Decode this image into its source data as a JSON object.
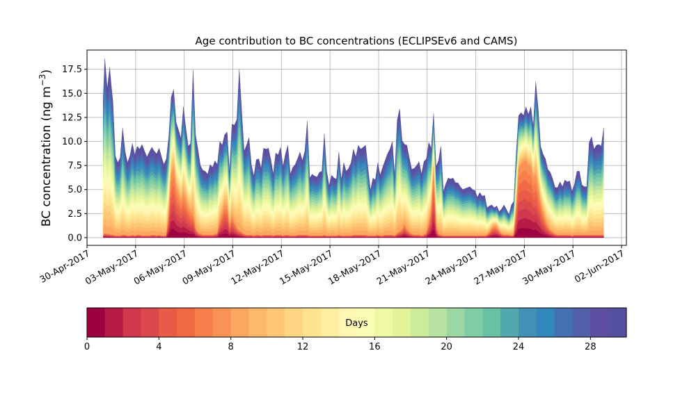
{
  "chart_data": {
    "type": "area",
    "stacked": true,
    "title": "Age contribution to BC concentrations (ECLIPSEv6 and CAMS)",
    "ylabel": "BC concentration (ng m",
    "ylabel_sup": "−3",
    "ylabel_close": ")",
    "xlabel": "",
    "grid": true,
    "xlim_days": [
      0,
      33.3
    ],
    "ylim": [
      -0.8,
      19.5
    ],
    "yticks": [
      0.0,
      2.5,
      5.0,
      7.5,
      10.0,
      12.5,
      15.0,
      17.5
    ],
    "ytick_labels": [
      "0.0",
      "2.5",
      "5.0",
      "7.5",
      "10.0",
      "12.5",
      "15.0",
      "17.5"
    ],
    "xticks": [
      {
        "day": 0,
        "label": "30-Apr-2017"
      },
      {
        "day": 3,
        "label": "03-May-2017"
      },
      {
        "day": 6,
        "label": "06-May-2017"
      },
      {
        "day": 9,
        "label": "09-May-2017"
      },
      {
        "day": 12,
        "label": "12-May-2017"
      },
      {
        "day": 15,
        "label": "15-May-2017"
      },
      {
        "day": 18,
        "label": "18-May-2017"
      },
      {
        "day": 21,
        "label": "21-May-2017"
      },
      {
        "day": 24,
        "label": "24-May-2017"
      },
      {
        "day": 27,
        "label": "27-May-2017"
      },
      {
        "day": 30,
        "label": "30-May-2017"
      },
      {
        "day": 33,
        "label": "02-Jun-2017"
      }
    ],
    "series_note": "30 stacked age bands (0-30 days); total concentration shown, young-age (<8 days) fraction shown",
    "x_days": [
      1.0,
      1.1,
      1.25,
      1.4,
      1.5,
      1.6,
      1.75,
      1.9,
      2.05,
      2.2,
      2.35,
      2.5,
      2.65,
      2.8,
      2.95,
      3.1,
      3.25,
      3.4,
      3.55,
      3.7,
      3.85,
      4.0,
      4.15,
      4.3,
      4.45,
      4.6,
      4.75,
      4.9,
      5.05,
      5.2,
      5.35,
      5.5,
      5.65,
      5.8,
      5.95,
      6.1,
      6.25,
      6.4,
      6.55,
      6.7,
      6.85,
      7.0,
      7.15,
      7.3,
      7.45,
      7.6,
      7.75,
      7.9,
      8.05,
      8.2,
      8.35,
      8.5,
      8.65,
      8.8,
      8.95,
      9.1,
      9.25,
      9.4,
      9.55,
      9.7,
      9.85,
      10.0,
      10.15,
      10.3,
      10.45,
      10.6,
      10.75,
      10.9,
      11.05,
      11.2,
      11.35,
      11.5,
      11.65,
      11.8,
      11.95,
      12.1,
      12.25,
      12.4,
      12.55,
      12.7,
      12.85,
      13.0,
      13.15,
      13.3,
      13.45,
      13.6,
      13.75,
      13.9,
      14.05,
      14.2,
      14.35,
      14.5,
      14.65,
      14.8,
      14.95,
      15.1,
      15.25,
      15.4,
      15.55,
      15.7,
      15.85,
      16.0,
      16.15,
      16.3,
      16.45,
      16.6,
      16.75,
      16.9,
      17.05,
      17.2,
      17.35,
      17.5,
      17.65,
      17.8,
      17.95,
      18.1,
      18.25,
      18.4,
      18.55,
      18.7,
      18.85,
      19.0,
      19.15,
      19.3,
      19.45,
      19.6,
      19.75,
      19.9,
      20.05,
      20.2,
      20.35,
      20.5,
      20.65,
      20.8,
      20.95,
      21.1,
      21.25,
      21.4,
      21.55,
      21.7,
      21.85,
      22.0,
      22.15,
      22.3,
      22.45,
      22.6,
      22.75,
      22.9,
      23.05,
      23.2,
      23.35,
      23.5,
      23.65,
      23.8,
      23.95,
      24.1,
      24.25,
      24.4,
      24.55,
      24.7,
      24.85,
      25.0,
      25.15,
      25.3,
      25.45,
      25.6,
      25.75,
      25.9,
      26.05,
      26.2,
      26.35,
      26.5,
      26.65,
      26.8,
      26.95,
      27.1,
      27.25,
      27.4,
      27.55,
      27.7,
      27.85,
      28.0,
      28.15,
      28.3,
      28.45,
      28.6,
      28.75,
      28.9,
      29.05,
      29.2,
      29.35,
      29.5,
      29.65,
      29.8,
      29.95,
      30.1,
      30.25,
      30.4,
      30.55,
      30.7,
      30.85,
      31.0,
      31.15,
      31.3,
      31.45,
      31.6,
      31.75,
      31.9
    ],
    "total": [
      14.5,
      18.6,
      15.5,
      17.7,
      15.8,
      14.2,
      8.5,
      7.8,
      8.3,
      11.4,
      9.0,
      7.8,
      8.5,
      9.8,
      8.6,
      9.5,
      9.2,
      9.7,
      9.0,
      8.4,
      8.9,
      9.4,
      9.0,
      8.7,
      9.3,
      8.4,
      7.6,
      8.2,
      10.5,
      14.6,
      15.4,
      12.0,
      11.2,
      10.3,
      13.6,
      11.4,
      9.5,
      9.8,
      17.4,
      10.7,
      9.2,
      7.5,
      7.0,
      6.9,
      6.6,
      7.6,
      7.3,
      8.0,
      7.6,
      10.0,
      9.6,
      10.7,
      11.0,
      6.8,
      11.8,
      11.7,
      12.3,
      17.5,
      13.1,
      9.0,
      9.6,
      10.4,
      7.6,
      6.4,
      8.1,
      8.2,
      7.2,
      9.3,
      9.2,
      9.3,
      8.1,
      6.6,
      8.8,
      8.6,
      9.4,
      7.4,
      8.7,
      9.6,
      6.6,
      7.3,
      7.6,
      8.2,
      8.9,
      8.0,
      9.0,
      12.1,
      6.2,
      6.6,
      6.4,
      6.3,
      6.8,
      6.9,
      10.8,
      6.9,
      5.4,
      6.5,
      6.2,
      6.1,
      8.9,
      6.0,
      7.8,
      6.9,
      7.2,
      7.8,
      9.2,
      8.4,
      9.6,
      9.2,
      9.4,
      9.6,
      7.2,
      4.9,
      6.2,
      6.0,
      7.8,
      6.5,
      7.3,
      8.0,
      8.7,
      9.2,
      10.0,
      6.4,
      12.2,
      13.4,
      10.1,
      9.7,
      9.6,
      8.3,
      7.1,
      7.2,
      7.5,
      7.9,
      6.6,
      7.9,
      8.2,
      9.9,
      9.3,
      12.9,
      7.4,
      8.0,
      9.5,
      4.8,
      5.6,
      6.2,
      6.1,
      6.2,
      5.7,
      5.7,
      5.3,
      5.0,
      5.1,
      5.2,
      5.3,
      5.0,
      4.9,
      4.2,
      4.7,
      4.3,
      4.4,
      3.1,
      3.3,
      3.4,
      3.1,
      3.3,
      2.7,
      3.0,
      3.4,
      2.9,
      2.4,
      3.4,
      3.8,
      8.8,
      12.7,
      13.0,
      12.7,
      13.6,
      12.8,
      13.6,
      11.6,
      16.2,
      13.5,
      9.5,
      8.7,
      8.2,
      7.1,
      6.8,
      6.1,
      5.2,
      5.2,
      5.8,
      5.3,
      6.0,
      5.8,
      5.9,
      4.8,
      5.6,
      6.9,
      6.9,
      5.5,
      5.3,
      5.3,
      9.9,
      10.5,
      9.2,
      9.6,
      9.7,
      9.5,
      11.4
    ],
    "young": [
      0.3,
      0.5,
      0.4,
      0.4,
      0.3,
      0.3,
      0.2,
      0.2,
      0.2,
      0.3,
      0.3,
      0.2,
      0.2,
      0.3,
      0.2,
      0.3,
      0.3,
      0.2,
      0.2,
      0.2,
      0.2,
      0.3,
      0.3,
      0.2,
      0.3,
      0.2,
      0.2,
      0.2,
      2.5,
      6.6,
      7.2,
      5.2,
      4.5,
      3.8,
      4.6,
      3.9,
      3.2,
      2.7,
      2.5,
      1.0,
      0.6,
      0.4,
      0.3,
      0.3,
      0.3,
      0.3,
      0.3,
      0.4,
      0.5,
      1.8,
      2.6,
      3.4,
      3.3,
      1.2,
      2.3,
      1.6,
      1.1,
      0.8,
      0.6,
      0.4,
      0.3,
      0.3,
      0.3,
      0.2,
      0.3,
      0.3,
      0.2,
      0.3,
      0.3,
      0.3,
      0.3,
      0.2,
      0.3,
      0.3,
      0.3,
      0.2,
      0.3,
      0.3,
      0.2,
      0.2,
      0.2,
      0.3,
      0.3,
      0.3,
      0.3,
      0.3,
      0.2,
      0.2,
      0.2,
      0.2,
      0.2,
      0.2,
      0.3,
      0.2,
      0.2,
      0.2,
      0.2,
      0.2,
      0.3,
      0.2,
      0.2,
      0.2,
      0.2,
      0.2,
      0.3,
      0.3,
      0.3,
      0.3,
      0.3,
      0.3,
      0.2,
      0.2,
      0.2,
      0.2,
      0.3,
      0.2,
      0.2,
      0.3,
      0.3,
      0.3,
      0.3,
      0.2,
      0.5,
      0.7,
      0.9,
      1.4,
      0.9,
      0.6,
      0.4,
      0.3,
      0.3,
      0.3,
      0.2,
      0.3,
      0.5,
      1.5,
      2.9,
      6.8,
      1.2,
      0.4,
      0.3,
      0.2,
      0.2,
      0.2,
      0.2,
      0.2,
      0.2,
      0.2,
      0.2,
      0.2,
      0.2,
      0.2,
      0.2,
      0.2,
      0.2,
      0.2,
      0.2,
      0.2,
      0.2,
      0.3,
      0.6,
      1.0,
      1.2,
      1.1,
      0.7,
      0.4,
      0.3,
      0.3,
      0.3,
      0.2,
      0.3,
      3.0,
      7.2,
      7.6,
      7.9,
      8.0,
      7.5,
      7.4,
      6.1,
      6.6,
      5.1,
      3.6,
      2.6,
      1.8,
      1.2,
      0.8,
      0.6,
      0.4,
      0.3,
      0.3,
      0.3,
      0.3,
      0.3,
      0.3,
      0.2,
      0.3,
      0.3,
      0.3,
      0.3,
      0.3,
      0.3,
      0.3,
      0.3,
      0.3,
      0.3,
      0.3,
      0.3,
      0.3
    ]
  },
  "colorbar": {
    "label": "Days",
    "min": 0,
    "max": 30,
    "ticks": [
      0,
      4,
      8,
      12,
      16,
      20,
      24,
      28
    ],
    "tick_labels": [
      "0",
      "4",
      "8",
      "12",
      "16",
      "20",
      "24",
      "28"
    ],
    "colors": [
      "#9e0142",
      "#b71c47",
      "#cf384d",
      "#dc494c",
      "#e85b48",
      "#f06b44",
      "#f67f4b",
      "#f99355",
      "#fca75f",
      "#fdb869",
      "#fdc776",
      "#fed683",
      "#fee391",
      "#feee9f",
      "#fff8b4",
      "#f9fcb5",
      "#eef8a5",
      "#e2f397",
      "#cdeb9d",
      "#b8e2a2",
      "#9cd6a4",
      "#80cca5",
      "#68c1a5",
      "#52a8af",
      "#4290b5",
      "#3287bd",
      "#4370b2",
      "#5160a9",
      "#5e4fa2",
      "#5650a1"
    ]
  }
}
